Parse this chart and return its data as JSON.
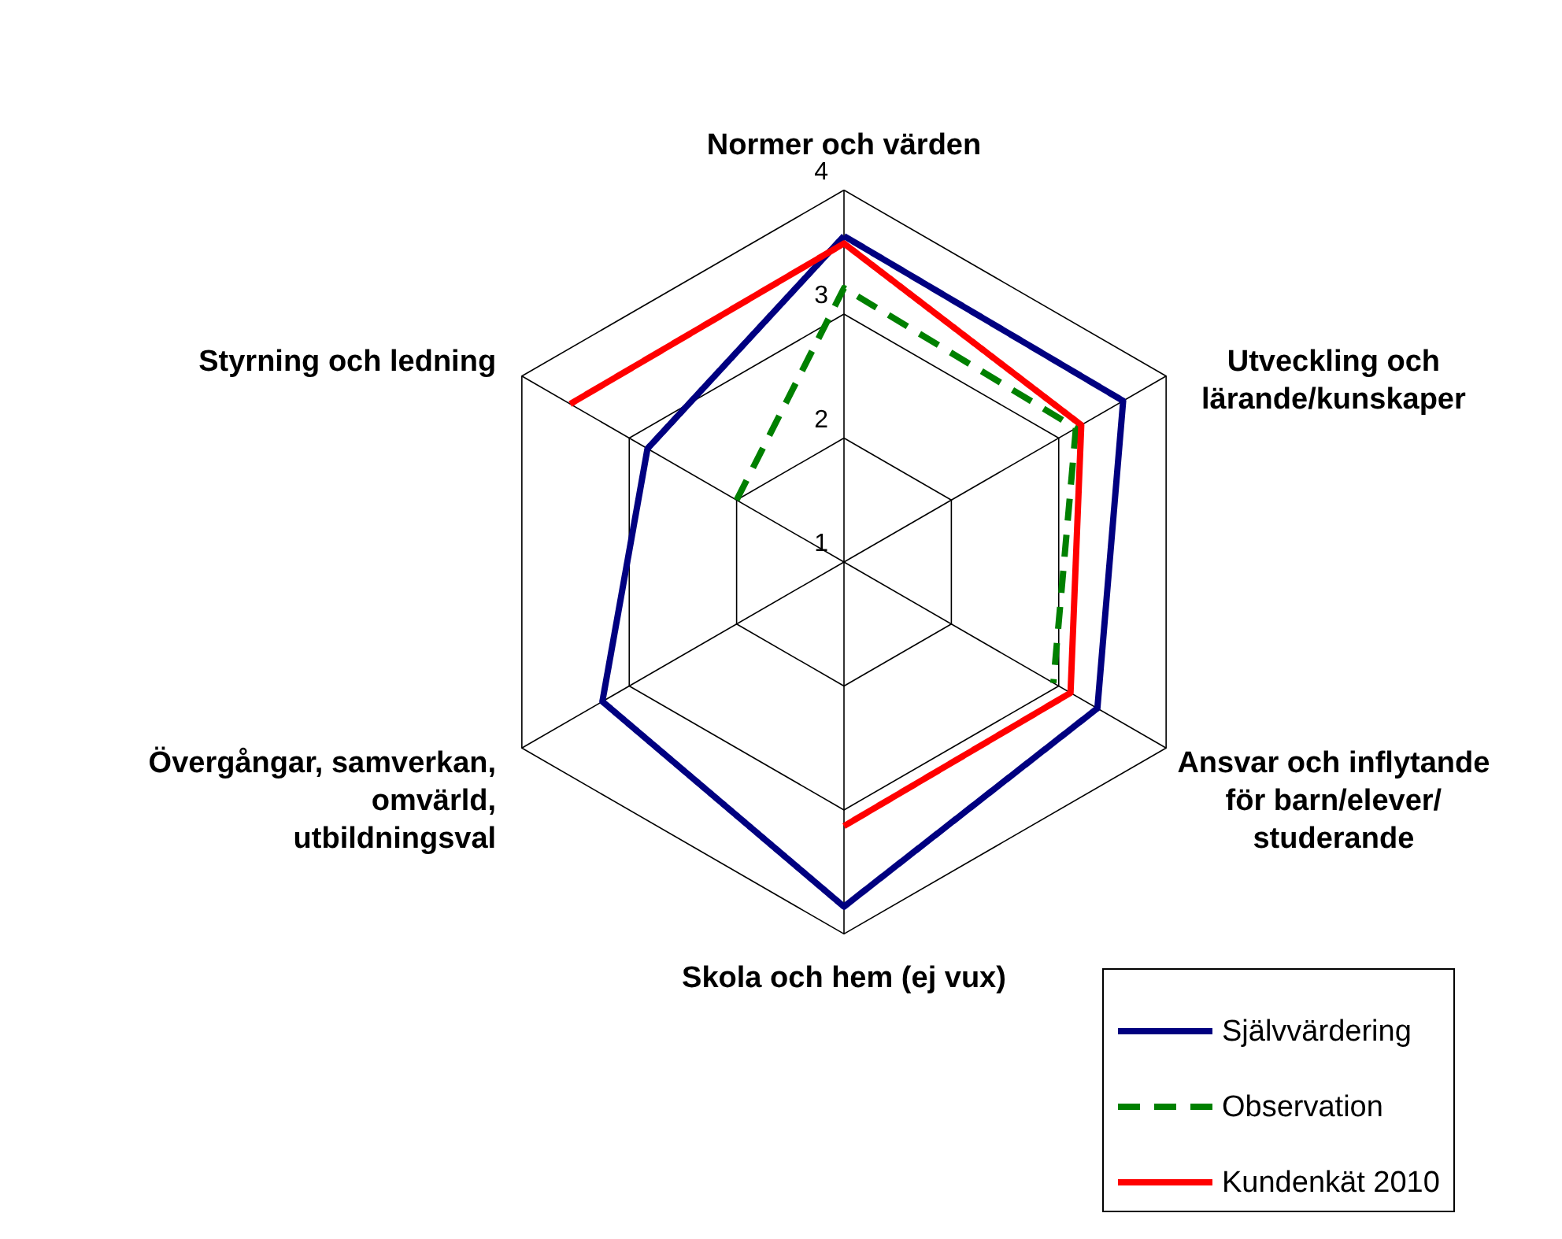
{
  "chart_data": {
    "type": "radar",
    "categories": [
      "Normer och värden",
      "Utveckling och lärande/kunskaper",
      "Ansvar och inflytande för barn/elever/studerande",
      "Skola och hem (ej vux)",
      "Övergångar, samverkan, omvärld, utbildningsval",
      "Styrning och ledning"
    ],
    "ylim": [
      1,
      4
    ],
    "yticks": [
      1,
      2,
      3,
      4
    ],
    "grid": true,
    "legend": "bottom right",
    "series": [
      {
        "name": "Självvärdering",
        "color": "#000080",
        "line_style": "solid",
        "values": [
          3.63,
          3.6,
          3.36,
          3.78,
          3.25,
          2.83
        ]
      },
      {
        "name": "Observation",
        "color": "#008000",
        "line_style": "dashed",
        "values": [
          3.21,
          3.16,
          2.95,
          null,
          null,
          2.0
        ]
      },
      {
        "name": "Kundenkät 2010",
        "color": "#ff0000",
        "line_style": "solid",
        "values": [
          3.57,
          3.21,
          3.11,
          3.13,
          null,
          3.55
        ]
      }
    ]
  }
}
